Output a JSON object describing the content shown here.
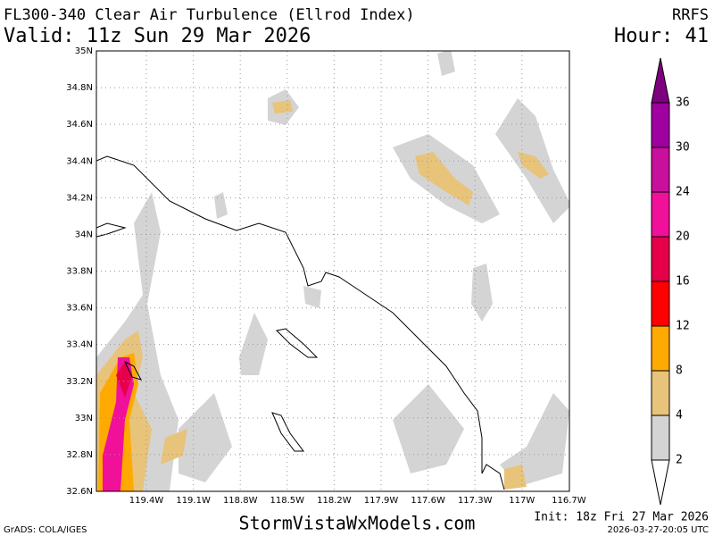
{
  "header": {
    "title": "FL300-340 Clear Air Turbulence (Ellrod Index)",
    "model": "RRFS",
    "valid": "Valid: 11z Sun 29 Mar 2026",
    "hour": "Hour: 41"
  },
  "map": {
    "lat_labels": [
      "35N",
      "34.8N",
      "34.6N",
      "34.4N",
      "34.2N",
      "34N",
      "33.8N",
      "33.6N",
      "33.4N",
      "33.2N",
      "33N",
      "32.8N",
      "32.6N"
    ],
    "lon_labels": [
      "119.4W",
      "119.1W",
      "118.8W",
      "118.5W",
      "118.2W",
      "117.9W",
      "117.6W",
      "117.3W",
      "117W",
      "116.7W"
    ]
  },
  "colorbar": {
    "levels": [
      2,
      4,
      8,
      12,
      16,
      20,
      24,
      30,
      36
    ],
    "colors": [
      "#ffffff",
      "#d4d4d4",
      "#e8c37a",
      "#ffaa00",
      "#ff0000",
      "#e6004a",
      "#f0109a",
      "#c8109c",
      "#a0009f",
      "#7f007f"
    ]
  },
  "footer": {
    "site": "StormVistaWxModels.com",
    "init": "Init: 18z Fri 27 Mar 2026",
    "grads": "GrADS: COLA/IGES",
    "timestamp": "2026-03-27-20:05 UTC"
  }
}
